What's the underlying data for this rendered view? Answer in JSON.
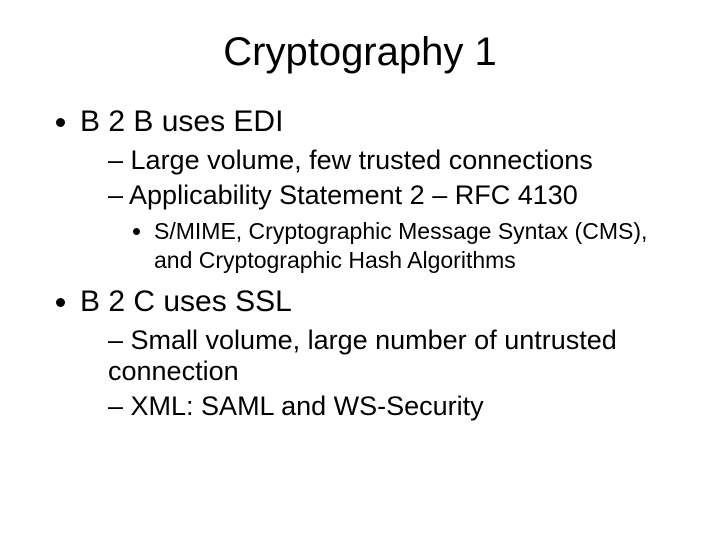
{
  "type": "slide",
  "background_color": "#ffffff",
  "text_color": "#000000",
  "font_family": "Arial",
  "title": {
    "text": "Cryptography 1",
    "fontsize": 40,
    "align": "center"
  },
  "bullets": {
    "level1_fontsize": 30,
    "level2_fontsize": 27,
    "level3_fontsize": 23,
    "items": [
      {
        "text": "B 2 B uses EDI",
        "children": [
          {
            "text": "Large volume, few trusted connections"
          },
          {
            "text": "Applicability Statement 2 – RFC 4130",
            "children": [
              {
                "text": "S/MIME, Cryptographic Message Syntax (CMS), and Cryptographic Hash Algorithms"
              }
            ]
          }
        ]
      },
      {
        "text": "B 2 C uses SSL",
        "children": [
          {
            "text": "Small volume, large number of untrusted connection"
          },
          {
            "text": "XML: SAML and WS-Security"
          }
        ]
      }
    ]
  }
}
